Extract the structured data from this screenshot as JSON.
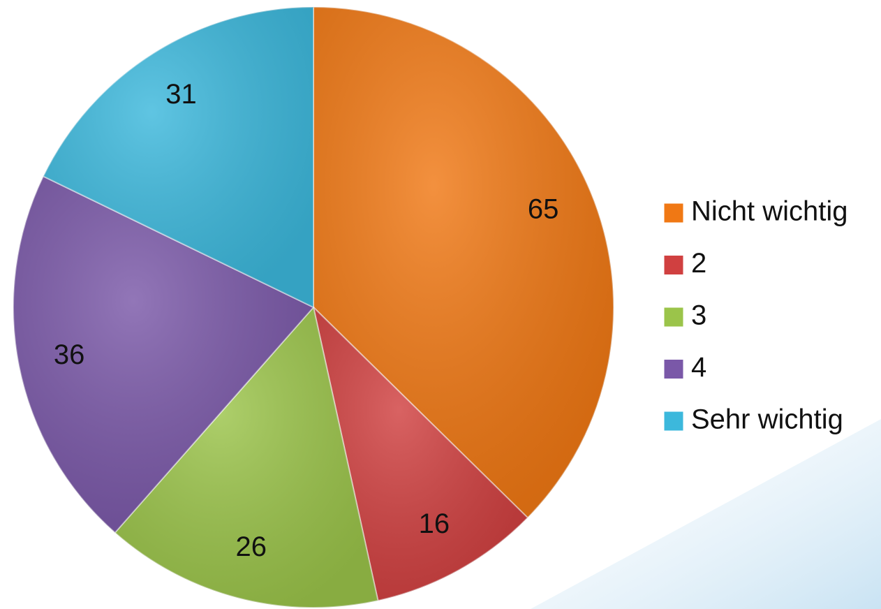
{
  "chart_data": {
    "type": "pie",
    "categories": [
      "Nicht wichtig",
      "2",
      "3",
      "4",
      "Sehr wichtig"
    ],
    "values": [
      65,
      16,
      26,
      36,
      31
    ],
    "colors": [
      "#f07814",
      "#d04040",
      "#9bc44a",
      "#7a58a8",
      "#3cb8dc"
    ],
    "legend": "right"
  }
}
